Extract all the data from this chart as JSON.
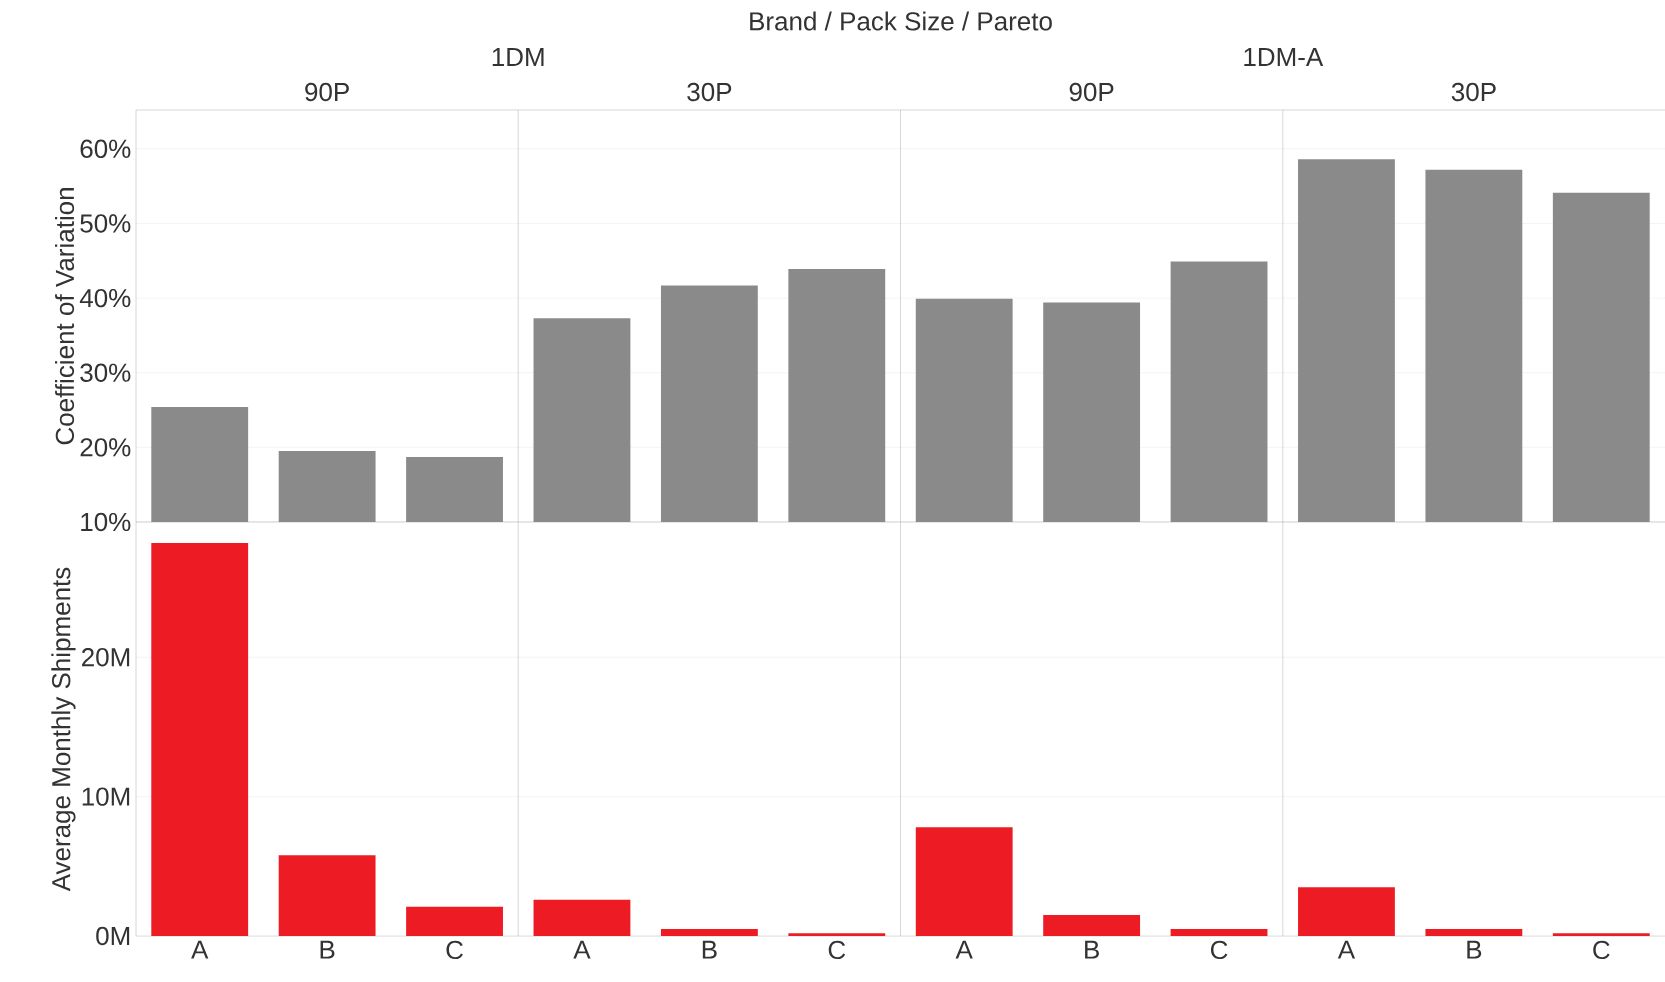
{
  "chart_data": [
    {
      "type": "bar",
      "title": "Brand  /  Pack Size  /  Pareto",
      "annotations": [
        "1DM",
        "1DM-A",
        "90P",
        "30P",
        "90P",
        "30P"
      ],
      "ylabel": "Coefficient of Variation",
      "categories": [
        null,
        null,
        null,
        null,
        null,
        null,
        null,
        null,
        null,
        null,
        null,
        null
      ],
      "color": "#8a8a8a",
      "values": [
        25.4,
        19.5,
        18.7,
        37.3,
        41.7,
        43.9,
        39.9,
        39.4,
        44.9,
        58.6,
        57.2,
        54.1
      ],
      "ylim": [
        10,
        65.2
      ],
      "yticks": [
        {
          "value": 10,
          "label": "10%"
        },
        {
          "value": 20,
          "label": "20%"
        },
        {
          "value": 30,
          "label": "30%"
        },
        {
          "value": 40,
          "label": "40%"
        },
        {
          "value": 50,
          "label": "50%"
        },
        {
          "value": 60,
          "label": "60%"
        }
      ],
      "grid": "y",
      "tick_labels": "y"
    },
    {
      "type": "bar",
      "ylabel": "Average Monthly Shipments",
      "categories": [
        "A",
        "B",
        "C",
        "A",
        "B",
        "C",
        "A",
        "B",
        "C",
        "A",
        "B",
        "C"
      ],
      "color": "#ed1c24",
      "values": [
        28.2,
        5.8,
        2.1,
        2.6,
        0.5,
        0.2,
        7.8,
        1.5,
        0.5,
        3.5,
        0.5,
        0.2
      ],
      "ylim": [
        0,
        29.7
      ],
      "yticks": [
        {
          "value": 0,
          "label": "0M"
        },
        {
          "value": 10,
          "label": "10M"
        },
        {
          "value": 20,
          "label": "20M"
        }
      ],
      "grid": "y"
    }
  ]
}
